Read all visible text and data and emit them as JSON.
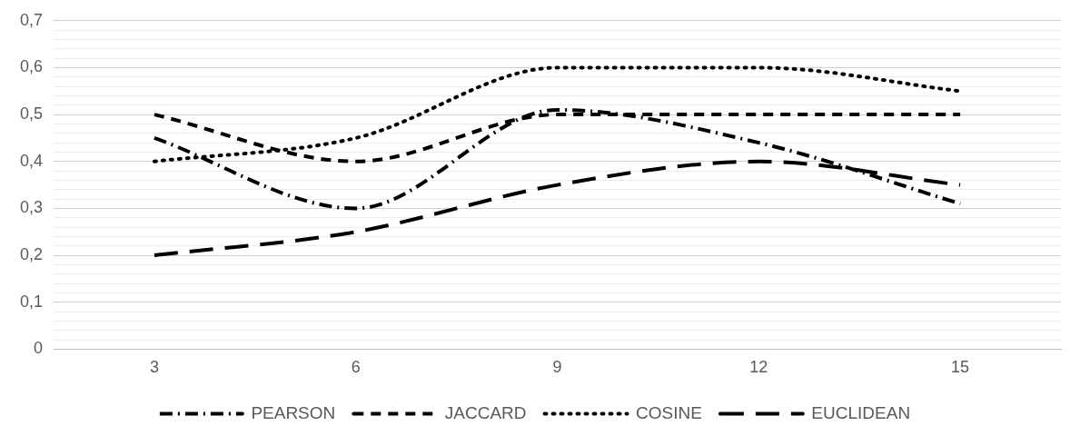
{
  "chart_data": {
    "type": "line",
    "categories": [
      "3",
      "6",
      "9",
      "12",
      "15"
    ],
    "series": [
      {
        "name": "PEARSON",
        "color": "#000000",
        "line_style": "dashdot",
        "values": [
          0.45,
          0.3,
          0.51,
          0.44,
          0.31
        ]
      },
      {
        "name": "JACCARD",
        "color": "#000000",
        "line_style": "dashed",
        "values": [
          0.5,
          0.4,
          0.5,
          0.5,
          0.5
        ]
      },
      {
        "name": "COSINE",
        "color": "#000000",
        "line_style": "dotted",
        "values": [
          0.4,
          0.45,
          0.6,
          0.6,
          0.55
        ]
      },
      {
        "name": "EUCLIDEAN",
        "color": "#000000",
        "line_style": "longdash",
        "values": [
          0.2,
          0.25,
          0.35,
          0.4,
          0.35
        ]
      }
    ],
    "ylim": [
      0,
      0.7
    ],
    "yticks": [
      {
        "value": 0,
        "label": "0"
      },
      {
        "value": 0.02,
        "label": null
      },
      {
        "value": 0.04,
        "label": null
      },
      {
        "value": 0.06,
        "label": null
      },
      {
        "value": 0.08,
        "label": null
      },
      {
        "value": 0.1,
        "label": "0,1"
      },
      {
        "value": 0.12,
        "label": null
      },
      {
        "value": 0.14,
        "label": null
      },
      {
        "value": 0.16,
        "label": null
      },
      {
        "value": 0.18,
        "label": null
      },
      {
        "value": 0.2,
        "label": "0,2"
      },
      {
        "value": 0.22,
        "label": null
      },
      {
        "value": 0.24,
        "label": null
      },
      {
        "value": 0.26,
        "label": null
      },
      {
        "value": 0.28,
        "label": null
      },
      {
        "value": 0.3,
        "label": "0,3"
      },
      {
        "value": 0.32,
        "label": null
      },
      {
        "value": 0.34,
        "label": null
      },
      {
        "value": 0.36,
        "label": null
      },
      {
        "value": 0.38,
        "label": null
      },
      {
        "value": 0.4,
        "label": "0,4"
      },
      {
        "value": 0.42,
        "label": null
      },
      {
        "value": 0.44,
        "label": null
      },
      {
        "value": 0.46,
        "label": null
      },
      {
        "value": 0.48,
        "label": null
      },
      {
        "value": 0.5,
        "label": "0,5"
      },
      {
        "value": 0.52,
        "label": null
      },
      {
        "value": 0.54,
        "label": null
      },
      {
        "value": 0.56,
        "label": null
      },
      {
        "value": 0.58,
        "label": null
      },
      {
        "value": 0.6,
        "label": "0,6"
      },
      {
        "value": 0.62,
        "label": null
      },
      {
        "value": 0.64,
        "label": null
      },
      {
        "value": 0.66,
        "label": null
      },
      {
        "value": 0.68,
        "label": null
      },
      {
        "value": 0.7,
        "label": "0,7"
      }
    ],
    "grid": "y",
    "legend": "bottom",
    "marker": "none"
  }
}
